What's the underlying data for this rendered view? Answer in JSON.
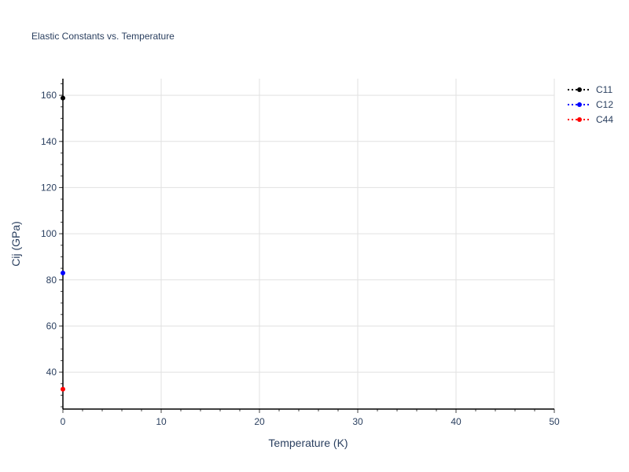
{
  "chart_data": {
    "type": "scatter",
    "mode": "lines+markers",
    "title": "Elastic Constants vs. Temperature",
    "xlabel": "Temperature (K)",
    "ylabel": "Cij (GPa)",
    "xlim": [
      0,
      50
    ],
    "ylim": [
      24,
      167.2
    ],
    "xticks": [
      0,
      10,
      20,
      30,
      40,
      50
    ],
    "yticks": [
      40,
      60,
      80,
      100,
      120,
      140,
      160
    ],
    "grid": true,
    "legend_position": "top-right",
    "series": [
      {
        "name": "C11",
        "color": "#000000",
        "x": [
          0
        ],
        "y": [
          158.8
        ]
      },
      {
        "name": "C12",
        "color": "#0000ff",
        "x": [
          0
        ],
        "y": [
          83
        ]
      },
      {
        "name": "C44",
        "color": "#ff0000",
        "x": [
          0
        ],
        "y": [
          32.6
        ]
      }
    ]
  }
}
